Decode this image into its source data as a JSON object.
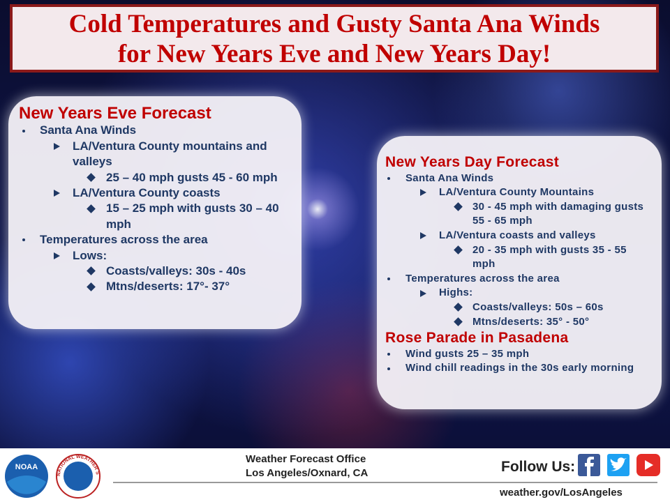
{
  "header": {
    "title_lines": [
      "Cold Temperatures and Gusty Santa Ana Winds",
      "for New Years Eve and New Years Day!"
    ]
  },
  "eve_panel": {
    "heading": "New Years Eve Forecast",
    "items": [
      {
        "level": 0,
        "text": "Santa Ana Winds"
      },
      {
        "level": 1,
        "text": "LA/Ventura County mountains and valleys"
      },
      {
        "level": 2,
        "text": "25 – 40 mph gusts 45 - 60 mph"
      },
      {
        "level": 1,
        "text": "LA/Ventura County coasts"
      },
      {
        "level": 2,
        "text": "15 – 25 mph with gusts 30 – 40 mph"
      },
      {
        "level": 0,
        "text": "Temperatures across the area"
      },
      {
        "level": 1,
        "text": "Lows:"
      },
      {
        "level": 2,
        "text": "Coasts/valleys: 30s - 40s"
      },
      {
        "level": 2,
        "text": "Mtns/deserts: 17°- 37°"
      }
    ]
  },
  "day_panel": {
    "heading": "New Years Day Forecast",
    "items": [
      {
        "level": 0,
        "text": "Santa Ana Winds"
      },
      {
        "level": 1,
        "text": "LA/Ventura County Mountains"
      },
      {
        "level": 2,
        "text": "30 - 45 mph with damaging gusts 55 - 65 mph"
      },
      {
        "level": 1,
        "text": "LA/Ventura coasts and valleys"
      },
      {
        "level": 2,
        "text": "20 - 35 mph with gusts 35 - 55 mph"
      },
      {
        "level": 0,
        "text": "Temperatures across the area"
      },
      {
        "level": 1,
        "text": "Highs:"
      },
      {
        "level": 2,
        "text": "Coasts/valleys: 50s – 60s"
      },
      {
        "level": 2,
        "text": "Mtns/deserts: 35° - 50°"
      }
    ],
    "parade_heading": "Rose Parade in Pasadena",
    "parade_items": [
      {
        "level": 0,
        "text": "Wind gusts 25 – 35 mph"
      },
      {
        "level": 0,
        "text": "Wind chill readings in the 30s early morning"
      }
    ]
  },
  "footer": {
    "noaa": "NOAA",
    "nws": "NATIONAL WEATHER SERVICE",
    "office": "Weather Forecast Office",
    "location": "Los Angeles/Oxnard, CA",
    "follow": "Follow Us:",
    "url": "weather.gov/LosAngeles"
  }
}
